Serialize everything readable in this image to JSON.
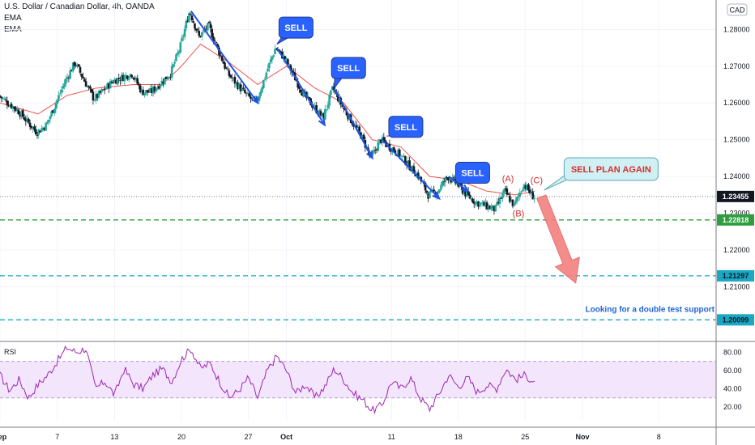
{
  "header": {
    "symbol_title": "U.S. Dollar / Canadian Dollar, 4h, OANDA",
    "indicator_1": "EMA",
    "indicator_2": "EMA",
    "currency": "CAD"
  },
  "chart_data": {
    "type": "candlestick",
    "price_axis": {
      "ticks": [
        1.28,
        1.27,
        1.26,
        1.25,
        1.24,
        1.23,
        1.22,
        1.21
      ],
      "tick_labels": [
        "1.28000",
        "1.27000",
        "1.26000",
        "1.25000",
        "1.24000",
        "1.23000",
        "1.22000",
        "1.21000"
      ],
      "ylim": [
        1.196,
        1.288
      ]
    },
    "time_axis": {
      "labels": [
        "Sep",
        "7",
        "13",
        "20",
        "27",
        "Oct",
        "11",
        "18",
        "25",
        "Nov",
        "8"
      ],
      "label_days": [
        1,
        7,
        13,
        20,
        27,
        31,
        42,
        49,
        56,
        62,
        70
      ],
      "bold": [
        "Sep",
        "Oct",
        "Nov"
      ],
      "xlim_days": [
        1,
        76
      ]
    },
    "current_price": 1.23455,
    "price_levels": [
      {
        "value": 1.22818,
        "label": "1.22818",
        "color": "#2e9e3e"
      },
      {
        "value": 1.21297,
        "label": "1.21297",
        "color": "#19a8c4"
      },
      {
        "value": 1.20099,
        "label": "1.20099",
        "color": "#19a8c4"
      }
    ],
    "price_path": [
      {
        "day": 1,
        "v": 1.262
      },
      {
        "day": 3,
        "v": 1.258
      },
      {
        "day": 5,
        "v": 1.252
      },
      {
        "day": 6,
        "v": 1.254
      },
      {
        "day": 8,
        "v": 1.266
      },
      {
        "day": 9,
        "v": 1.271
      },
      {
        "day": 10,
        "v": 1.266
      },
      {
        "day": 11,
        "v": 1.261
      },
      {
        "day": 13,
        "v": 1.266
      },
      {
        "day": 15,
        "v": 1.268
      },
      {
        "day": 16,
        "v": 1.263
      },
      {
        "day": 17,
        "v": 1.263
      },
      {
        "day": 19,
        "v": 1.268
      },
      {
        "day": 20,
        "v": 1.275
      },
      {
        "day": 21,
        "v": 1.285
      },
      {
        "day": 22,
        "v": 1.278
      },
      {
        "day": 23,
        "v": 1.281
      },
      {
        "day": 25,
        "v": 1.268
      },
      {
        "day": 27,
        "v": 1.262
      },
      {
        "day": 28,
        "v": 1.26
      },
      {
        "day": 29,
        "v": 1.268
      },
      {
        "day": 30,
        "v": 1.275
      },
      {
        "day": 31,
        "v": 1.272
      },
      {
        "day": 33,
        "v": 1.262
      },
      {
        "day": 35,
        "v": 1.256
      },
      {
        "day": 36,
        "v": 1.264
      },
      {
        "day": 37,
        "v": 1.259
      },
      {
        "day": 39,
        "v": 1.251
      },
      {
        "day": 40,
        "v": 1.245
      },
      {
        "day": 41,
        "v": 1.25
      },
      {
        "day": 43,
        "v": 1.246
      },
      {
        "day": 45,
        "v": 1.24
      },
      {
        "day": 46,
        "v": 1.235
      },
      {
        "day": 47,
        "v": 1.236
      },
      {
        "day": 48,
        "v": 1.24
      },
      {
        "day": 49,
        "v": 1.238
      },
      {
        "day": 50,
        "v": 1.235
      },
      {
        "day": 51,
        "v": 1.233
      },
      {
        "day": 53,
        "v": 1.231
      },
      {
        "day": 54,
        "v": 1.236
      },
      {
        "day": 55,
        "v": 1.232
      },
      {
        "day": 56,
        "v": 1.238
      },
      {
        "day": 57,
        "v": 1.2345
      }
    ],
    "ema_path": [
      {
        "day": 1,
        "v": 1.26
      },
      {
        "day": 5,
        "v": 1.257
      },
      {
        "day": 8,
        "v": 1.262
      },
      {
        "day": 11,
        "v": 1.264
      },
      {
        "day": 15,
        "v": 1.265
      },
      {
        "day": 18,
        "v": 1.265
      },
      {
        "day": 20,
        "v": 1.27
      },
      {
        "day": 22,
        "v": 1.276
      },
      {
        "day": 25,
        "v": 1.271
      },
      {
        "day": 28,
        "v": 1.265
      },
      {
        "day": 31,
        "v": 1.27
      },
      {
        "day": 34,
        "v": 1.264
      },
      {
        "day": 37,
        "v": 1.26
      },
      {
        "day": 40,
        "v": 1.25
      },
      {
        "day": 43,
        "v": 1.248
      },
      {
        "day": 46,
        "v": 1.24
      },
      {
        "day": 49,
        "v": 1.239
      },
      {
        "day": 52,
        "v": 1.236
      },
      {
        "day": 55,
        "v": 1.235
      },
      {
        "day": 57,
        "v": 1.236
      }
    ],
    "trend_lines": [
      {
        "from": {
          "day": 21,
          "v": 1.285
        },
        "to": {
          "day": 28,
          "v": 1.26
        }
      },
      {
        "from": {
          "day": 30,
          "v": 1.275
        },
        "to": {
          "day": 35,
          "v": 1.254
        }
      },
      {
        "from": {
          "day": 36,
          "v": 1.264
        },
        "to": {
          "day": 40,
          "v": 1.245
        }
      },
      {
        "from": {
          "day": 41,
          "v": 1.25
        },
        "to": {
          "day": 47,
          "v": 1.234
        }
      },
      {
        "from": {
          "day": 48,
          "v": 1.24
        },
        "to": {
          "day": 50,
          "v": 1.236
        }
      }
    ],
    "sell_callouts": [
      {
        "label": "SELL",
        "box": {
          "day": 32,
          "v": 1.2805
        },
        "point": {
          "day": 30,
          "v": 1.276
        }
      },
      {
        "label": "SELL",
        "box": {
          "day": 37.5,
          "v": 1.2695
        },
        "point": {
          "day": 36,
          "v": 1.264
        }
      },
      {
        "label": "SELL",
        "box": {
          "day": 43.5,
          "v": 1.2535
        },
        "point": {
          "day": 41.5,
          "v": 1.251
        }
      },
      {
        "label": "SELL",
        "box": {
          "day": 50.5,
          "v": 1.241
        },
        "point": {
          "day": 49,
          "v": 1.239
        }
      }
    ],
    "wave_labels": [
      {
        "label": "(A)",
        "day": 54.2,
        "v": 1.2395
      },
      {
        "label": "(B)",
        "day": 55.3,
        "v": 1.23
      },
      {
        "label": "(C)",
        "day": 57.2,
        "v": 1.239
      }
    ],
    "plan_callout": {
      "text": "SELL PLAN AGAIN",
      "box_center": {
        "day": 65,
        "v": 1.242
      },
      "point": {
        "day": 58,
        "v": 1.2363
      }
    },
    "projection_arrow": {
      "from": {
        "day": 57.7,
        "v": 1.2345
      },
      "to": {
        "day": 61.3,
        "v": 1.211
      }
    },
    "note": {
      "text": "Looking for a double test support",
      "anchor": {
        "day": 76,
        "v": 1.204
      }
    },
    "rsi": {
      "label": "RSI",
      "ticks": [
        80,
        60,
        40,
        20
      ],
      "tick_labels": [
        "80.00",
        "60.00",
        "40.00",
        "20.00"
      ],
      "ylim": [
        5,
        90
      ],
      "band": [
        30,
        70
      ],
      "path": [
        {
          "day": 1,
          "v": 55
        },
        {
          "day": 2,
          "v": 38
        },
        {
          "day": 3,
          "v": 50
        },
        {
          "day": 4,
          "v": 30
        },
        {
          "day": 5,
          "v": 45
        },
        {
          "day": 6,
          "v": 55
        },
        {
          "day": 7,
          "v": 70
        },
        {
          "day": 8,
          "v": 85
        },
        {
          "day": 9,
          "v": 80
        },
        {
          "day": 10,
          "v": 84
        },
        {
          "day": 11,
          "v": 40
        },
        {
          "day": 12,
          "v": 48
        },
        {
          "day": 13,
          "v": 33
        },
        {
          "day": 14,
          "v": 62
        },
        {
          "day": 15,
          "v": 45
        },
        {
          "day": 16,
          "v": 40
        },
        {
          "day": 17,
          "v": 55
        },
        {
          "day": 18,
          "v": 62
        },
        {
          "day": 19,
          "v": 48
        },
        {
          "day": 20,
          "v": 72
        },
        {
          "day": 21,
          "v": 84
        },
        {
          "day": 22,
          "v": 62
        },
        {
          "day": 23,
          "v": 68
        },
        {
          "day": 24,
          "v": 48
        },
        {
          "day": 25,
          "v": 30
        },
        {
          "day": 26,
          "v": 38
        },
        {
          "day": 27,
          "v": 52
        },
        {
          "day": 28,
          "v": 30
        },
        {
          "day": 29,
          "v": 60
        },
        {
          "day": 30,
          "v": 76
        },
        {
          "day": 31,
          "v": 60
        },
        {
          "day": 32,
          "v": 35
        },
        {
          "day": 33,
          "v": 45
        },
        {
          "day": 34,
          "v": 30
        },
        {
          "day": 35,
          "v": 42
        },
        {
          "day": 36,
          "v": 62
        },
        {
          "day": 37,
          "v": 50
        },
        {
          "day": 38,
          "v": 35
        },
        {
          "day": 39,
          "v": 28
        },
        {
          "day": 40,
          "v": 16
        },
        {
          "day": 41,
          "v": 22
        },
        {
          "day": 42,
          "v": 48
        },
        {
          "day": 43,
          "v": 40
        },
        {
          "day": 44,
          "v": 52
        },
        {
          "day": 45,
          "v": 30
        },
        {
          "day": 46,
          "v": 18
        },
        {
          "day": 47,
          "v": 35
        },
        {
          "day": 48,
          "v": 55
        },
        {
          "day": 49,
          "v": 42
        },
        {
          "day": 50,
          "v": 52
        },
        {
          "day": 51,
          "v": 36
        },
        {
          "day": 52,
          "v": 44
        },
        {
          "day": 53,
          "v": 40
        },
        {
          "day": 54,
          "v": 62
        },
        {
          "day": 55,
          "v": 50
        },
        {
          "day": 56,
          "v": 55
        },
        {
          "day": 57,
          "v": 47
        }
      ]
    }
  }
}
